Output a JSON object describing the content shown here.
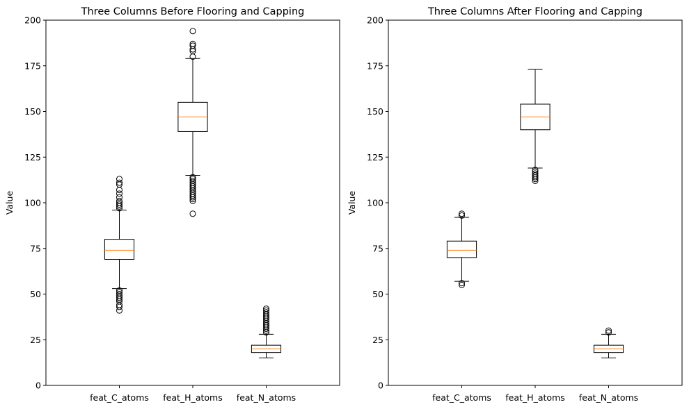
{
  "chart_data": [
    {
      "type": "box",
      "title": "Three Columns Before Flooring and Capping",
      "xlabel": "",
      "ylabel": "Value",
      "ylim": [
        0,
        200
      ],
      "yticks": [
        0,
        25,
        50,
        75,
        100,
        125,
        150,
        175,
        200
      ],
      "categories": [
        "feat_C_atoms",
        "feat_H_atoms",
        "feat_N_atoms"
      ],
      "grid": false,
      "colors": {
        "box": "#000000",
        "median": "#ff7f0e"
      },
      "boxes": [
        {
          "name": "feat_C_atoms",
          "whisker_low": 53,
          "q1": 69,
          "median": 74,
          "q3": 80,
          "whisker_high": 96,
          "outliers": [
            41,
            43,
            44,
            46,
            47,
            48,
            49,
            50,
            51,
            52,
            97,
            98,
            99,
            100,
            101,
            103,
            105,
            107,
            110,
            111,
            113
          ]
        },
        {
          "name": "feat_H_atoms",
          "whisker_low": 115,
          "q1": 139,
          "median": 147,
          "q3": 155,
          "whisker_high": 179,
          "outliers": [
            94,
            101,
            102,
            103,
            104,
            105,
            106,
            107,
            108,
            109,
            110,
            111,
            112,
            113,
            114,
            180,
            183,
            184,
            186,
            187,
            194
          ]
        },
        {
          "name": "feat_N_atoms",
          "whisker_low": 15,
          "q1": 18,
          "median": 20,
          "q3": 22,
          "whisker_high": 28,
          "outliers": [
            29,
            30,
            31,
            32,
            33,
            34,
            35,
            36,
            37,
            38,
            39,
            40,
            41,
            42
          ]
        }
      ]
    },
    {
      "type": "box",
      "title": "Three Columns After Flooring and Capping",
      "xlabel": "",
      "ylabel": "Value",
      "ylim": [
        0,
        200
      ],
      "yticks": [
        0,
        25,
        50,
        75,
        100,
        125,
        150,
        175,
        200
      ],
      "categories": [
        "feat_C_atoms",
        "feat_H_atoms",
        "feat_N_atoms"
      ],
      "grid": false,
      "colors": {
        "box": "#000000",
        "median": "#ff7f0e"
      },
      "boxes": [
        {
          "name": "feat_C_atoms",
          "whisker_low": 57,
          "q1": 70,
          "median": 74,
          "q3": 79,
          "whisker_high": 92,
          "outliers": [
            55,
            56,
            93,
            94
          ]
        },
        {
          "name": "feat_H_atoms",
          "whisker_low": 119,
          "q1": 140,
          "median": 147,
          "q3": 154,
          "whisker_high": 173,
          "outliers": [
            112,
            113,
            114,
            115,
            116,
            117,
            118
          ]
        },
        {
          "name": "feat_N_atoms",
          "whisker_low": 15,
          "q1": 18,
          "median": 20,
          "q3": 22,
          "whisker_high": 28,
          "outliers": [
            29,
            30
          ]
        }
      ]
    }
  ]
}
